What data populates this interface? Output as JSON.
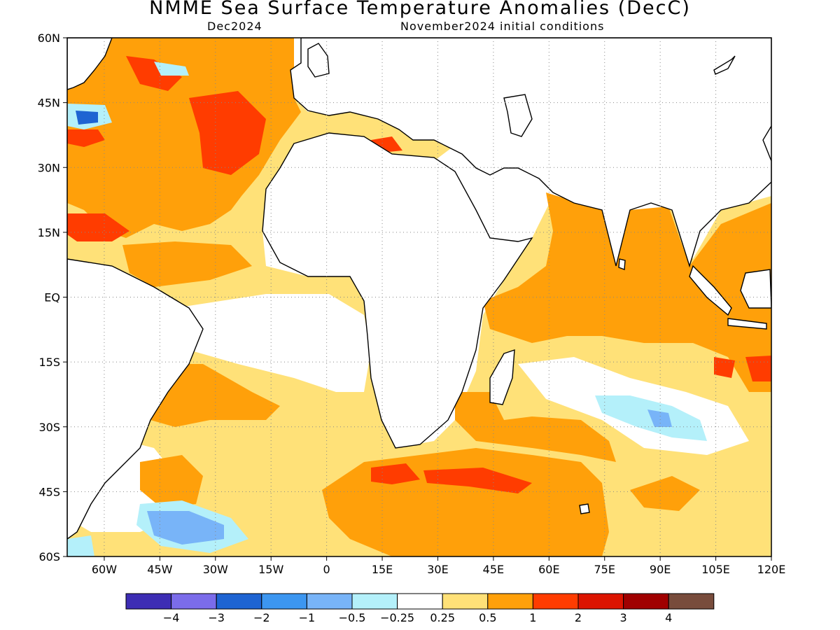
{
  "title": "NMME Sea Surface Temperature Anomalies (DecC)",
  "subtitle_left": "Dec2024",
  "subtitle_right": "November2024 initial conditions",
  "map": {
    "lon_range": [
      -70,
      120
    ],
    "lat_range": [
      -60,
      60
    ],
    "lat_ticks": [
      {
        "value": 60,
        "label": "60N"
      },
      {
        "value": 45,
        "label": "45N"
      },
      {
        "value": 30,
        "label": "30N"
      },
      {
        "value": 15,
        "label": "15N"
      },
      {
        "value": 0,
        "label": "EQ"
      },
      {
        "value": -15,
        "label": "15S"
      },
      {
        "value": -30,
        "label": "30S"
      },
      {
        "value": -45,
        "label": "45S"
      },
      {
        "value": -60,
        "label": "60S"
      }
    ],
    "lon_ticks": [
      {
        "value": -60,
        "label": "60W"
      },
      {
        "value": -45,
        "label": "45W"
      },
      {
        "value": -30,
        "label": "30W"
      },
      {
        "value": -15,
        "label": "15W"
      },
      {
        "value": 0,
        "label": "0"
      },
      {
        "value": 15,
        "label": "15E"
      },
      {
        "value": 30,
        "label": "30E"
      },
      {
        "value": 45,
        "label": "45E"
      },
      {
        "value": 60,
        "label": "60E"
      },
      {
        "value": 75,
        "label": "75E"
      },
      {
        "value": 90,
        "label": "90E"
      },
      {
        "value": 105,
        "label": "105E"
      },
      {
        "value": 120,
        "label": "120E"
      }
    ],
    "grid": "dotted"
  },
  "colorbar": {
    "colors": [
      "#3d2db4",
      "#7b6cea",
      "#1e64d2",
      "#3c96f0",
      "#78b4f8",
      "#b4f0fa",
      "#ffffff",
      "#ffe178",
      "#ffa00a",
      "#ff3c00",
      "#dc1400",
      "#a00000",
      "#784c3c"
    ],
    "labels": [
      "-4",
      "-3",
      "-2",
      "-1",
      "-0.5",
      "-0.25",
      "0.25",
      "0.5",
      "1",
      "2",
      "3",
      "4"
    ]
  }
}
